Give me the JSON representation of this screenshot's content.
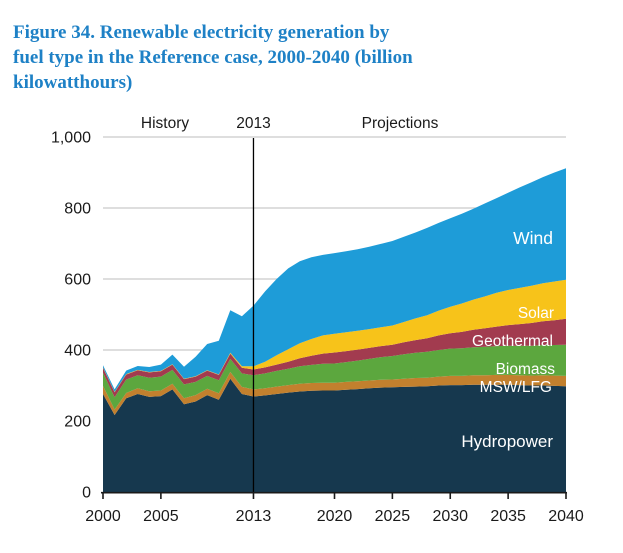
{
  "title": {
    "lines": [
      "Figure 34. Renewable electricity generation by",
      "fuel type in the Reference case, 2000-2040 (billion",
      "kilowatthours)"
    ]
  },
  "annotations": {
    "history": "History",
    "divider_year": "2013",
    "projections": "Projections"
  },
  "chart_data": {
    "type": "area",
    "stacked": true,
    "title": "Renewable electricity generation by fuel type, Reference case, 2000-2040",
    "units": "billion kilowatthours",
    "xlabel": "",
    "ylabel": "",
    "xlim": [
      2000,
      2040
    ],
    "ylim": [
      0,
      1000
    ],
    "grid": true,
    "legend_position": "labels-inside-areas",
    "divider_x": 2013,
    "x": [
      2000,
      2001,
      2002,
      2003,
      2004,
      2005,
      2006,
      2007,
      2008,
      2009,
      2010,
      2011,
      2012,
      2013,
      2014,
      2015,
      2016,
      2017,
      2018,
      2019,
      2020,
      2021,
      2022,
      2023,
      2024,
      2025,
      2026,
      2027,
      2028,
      2029,
      2030,
      2031,
      2032,
      2033,
      2034,
      2035,
      2036,
      2037,
      2038,
      2039,
      2040
    ],
    "x_tick_years": [
      2000,
      2005,
      2013,
      2020,
      2025,
      2030,
      2035,
      2040
    ],
    "x_tick_labels": [
      "2000",
      "2005",
      "2013",
      "2020",
      "2025",
      "2030",
      "2035",
      "2040"
    ],
    "y_ticks": [
      0,
      200,
      400,
      600,
      800,
      1000
    ],
    "y_tick_labels": [
      "0",
      "200",
      "400",
      "600",
      "800",
      "1,000"
    ],
    "series": [
      {
        "name": "hydropower",
        "label": "Hydropower",
        "color": "#16384e",
        "values": [
          276,
          217,
          264,
          276,
          268,
          270,
          289,
          247,
          255,
          273,
          260,
          319,
          276,
          269,
          272,
          276,
          280,
          283,
          285,
          286,
          286,
          288,
          290,
          292,
          294,
          295,
          296,
          297,
          298,
          300,
          301,
          301,
          302,
          302,
          302,
          302,
          301,
          300,
          300,
          299,
          298
        ]
      },
      {
        "name": "msw_lfg",
        "label": "MSW/LFG",
        "color": "#c2802e",
        "values": [
          23,
          15,
          15,
          16,
          16,
          16,
          16,
          17,
          18,
          18,
          18,
          19,
          20,
          20,
          20,
          21,
          21,
          22,
          22,
          22,
          22,
          22,
          22,
          22,
          22,
          22,
          23,
          24,
          24,
          25,
          26,
          26,
          27,
          27,
          28,
          28,
          28,
          28,
          29,
          29,
          29
        ]
      },
      {
        "name": "biomass",
        "label": "Biomass",
        "color": "#5ca73e",
        "values": [
          37,
          35,
          38,
          37,
          38,
          39,
          39,
          39,
          37,
          36,
          37,
          37,
          38,
          40,
          42,
          44,
          46,
          49,
          51,
          53,
          54,
          56,
          58,
          61,
          64,
          66,
          69,
          71,
          73,
          75,
          77,
          78,
          79,
          80,
          81,
          82,
          83,
          84,
          85,
          86,
          88
        ]
      },
      {
        "name": "geothermal",
        "label": "Geothermal",
        "color": "#a23b4f",
        "values": [
          14,
          14,
          14,
          14,
          15,
          15,
          15,
          15,
          15,
          15,
          15,
          15,
          16,
          16,
          17,
          18,
          20,
          23,
          26,
          29,
          31,
          31,
          31,
          31,
          31,
          32,
          34,
          36,
          38,
          41,
          43,
          46,
          49,
          52,
          55,
          58,
          61,
          64,
          67,
          70,
          73
        ]
      },
      {
        "name": "solar",
        "label": "Solar",
        "color": "#f7c31a",
        "values": [
          1,
          1,
          1,
          1,
          1,
          1,
          1,
          1,
          1,
          1,
          1,
          2,
          4,
          9,
          16,
          26,
          35,
          42,
          47,
          51,
          53,
          53,
          53,
          53,
          53,
          54,
          57,
          61,
          65,
          70,
          75,
          80,
          85,
          90,
          95,
          99,
          102,
          105,
          107,
          109,
          110
        ]
      },
      {
        "name": "wind",
        "label": "Wind",
        "color": "#1e9cd8",
        "values": [
          6,
          7,
          10,
          11,
          14,
          18,
          27,
          34,
          55,
          74,
          95,
          120,
          141,
          171,
          198,
          215,
          228,
          231,
          230,
          227,
          227,
          228,
          230,
          232,
          235,
          238,
          240,
          242,
          246,
          247,
          249,
          253,
          256,
          262,
          267,
          274,
          283,
          291,
          299,
          307,
          314
        ]
      }
    ],
    "colors": {
      "gridline": "#c9c9c9",
      "axis": "#1a1a1a",
      "divider": "#000000",
      "title_text": "#1e81c6",
      "area_label_text": "#ffffff"
    }
  }
}
